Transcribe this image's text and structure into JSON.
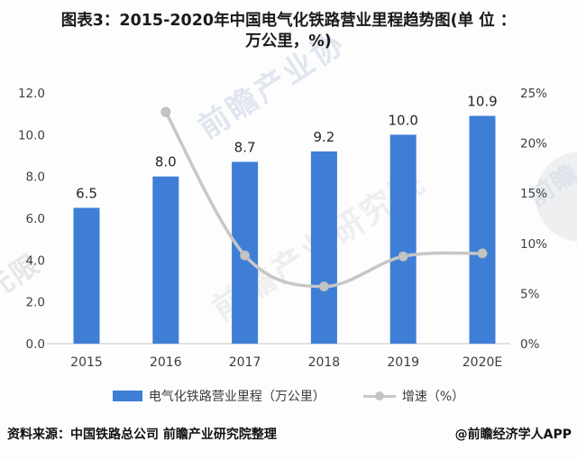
{
  "title": {
    "line1": "图表3：2015-2020年中国电气化铁路营业里程趋势图(单 位 ：",
    "line2": "万公里，%)"
  },
  "colors": {
    "bar": "#3e7ed6",
    "line": "#c7c7c7",
    "marker": "#c4c4c4",
    "axis_text": "#3f3f3f",
    "bar_label": "#262626",
    "baseline": "#d8d8d8"
  },
  "chart_data": {
    "type": "bar",
    "title": "2015-2020年中国电气化铁路营业里程趋势图",
    "categories": [
      "2015",
      "2016",
      "2017",
      "2018",
      "2019",
      "2020E"
    ],
    "series": [
      {
        "name": "电气化铁路营业里程（万公里）",
        "type": "bar",
        "axis": "left",
        "values": [
          6.5,
          8.0,
          8.7,
          9.2,
          10.0,
          10.9
        ]
      },
      {
        "name": "增速（%）",
        "type": "line",
        "axis": "right",
        "values": [
          null,
          23.1,
          8.8,
          5.7,
          8.7,
          9.0
        ]
      }
    ],
    "bar_labels": [
      "6.5",
      "8.0",
      "8.7",
      "9.2",
      "10.0",
      "10.9"
    ],
    "left_axis": {
      "min": 0,
      "max": 12,
      "ticks": [
        "12.0",
        "10.0",
        "8.0",
        "6.0",
        "4.0",
        "2.0",
        "0.0"
      ],
      "tick_values": [
        12,
        10,
        8,
        6,
        4,
        2,
        0
      ]
    },
    "right_axis": {
      "min": 0,
      "max": 25,
      "ticks": [
        "25%",
        "20%",
        "15%",
        "10%",
        "5%",
        "0%"
      ],
      "tick_values": [
        25,
        20,
        15,
        10,
        5,
        0
      ]
    },
    "grid": "off",
    "legend_position": "bottom"
  },
  "legend": [
    {
      "label": "电气化铁路营业里程（万公里）",
      "swatch": "bar-swatch"
    },
    {
      "label": "增速（%）",
      "swatch": "line-swatch"
    }
  ],
  "footer": {
    "source": "资料来源：中国铁路总公司 前瞻产业研究院整理",
    "credit": "@前瞻经济学人APP"
  },
  "watermarks": {
    "top": "前瞻产业协",
    "center": "前瞻产业研究院",
    "left": "元限",
    "right": "前瞻"
  }
}
